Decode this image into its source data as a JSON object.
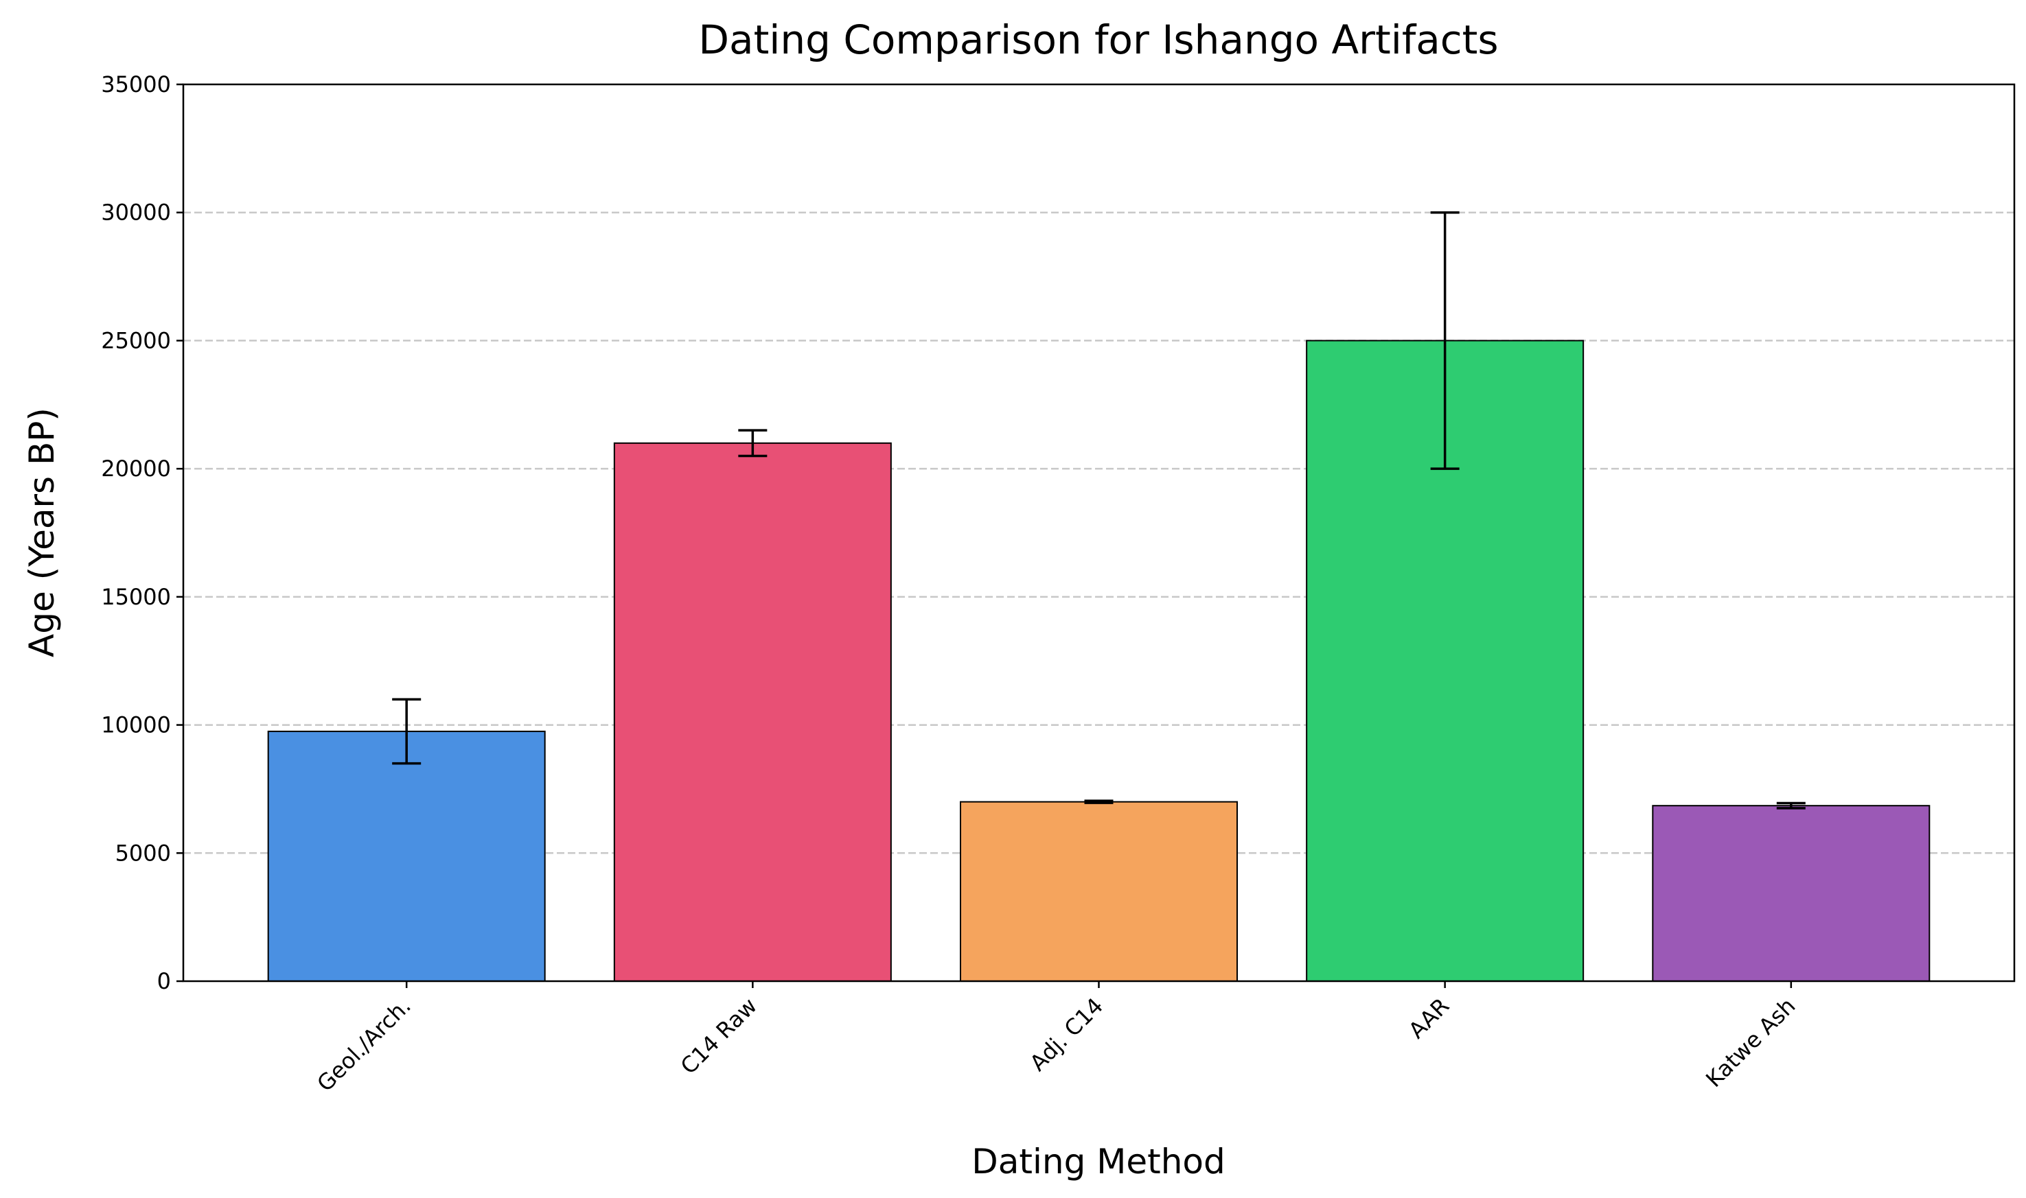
{
  "chart_data": {
    "type": "bar",
    "title": "Dating Comparison for Ishango Artifacts",
    "xlabel": "Dating Method",
    "ylabel": "Age (Years BP)",
    "categories": [
      "Geol./Arch.",
      "C14 Raw",
      "Adj. C14",
      "AAR",
      "Katwe Ash"
    ],
    "values": [
      9750,
      21000,
      7000,
      25000,
      6850
    ],
    "errors": [
      1250,
      500,
      40,
      5000,
      100
    ],
    "colors": [
      "#4a90e2",
      "#e85075",
      "#f5a45d",
      "#2ecc71",
      "#9b59b6"
    ],
    "ylim": [
      0,
      35000
    ],
    "yticks": [
      0,
      5000,
      10000,
      15000,
      20000,
      25000,
      30000,
      35000
    ],
    "grid": "y dashed",
    "legend": "none"
  }
}
